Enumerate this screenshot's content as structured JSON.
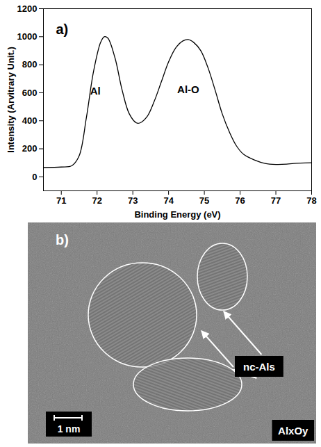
{
  "chart_data": {
    "type": "line",
    "panel_label": "a)",
    "x_label": "Binding Energy (eV)",
    "y_label": "Intensity (Arvitrary Unit.)",
    "x": [
      70.5,
      71.0,
      71.3,
      71.5,
      71.7,
      71.9,
      72.1,
      72.2,
      72.3,
      72.5,
      72.7,
      72.9,
      73.1,
      73.2,
      73.4,
      73.6,
      73.8,
      74.0,
      74.2,
      74.4,
      74.55,
      74.7,
      74.9,
      75.1,
      75.3,
      75.5,
      75.7,
      75.9,
      76.1,
      76.4,
      76.7,
      77.0,
      77.3,
      77.5,
      78.0
    ],
    "values": [
      65,
      70,
      80,
      150,
      420,
      750,
      960,
      1000,
      990,
      850,
      620,
      450,
      385,
      385,
      430,
      540,
      680,
      820,
      920,
      970,
      980,
      960,
      900,
      780,
      620,
      450,
      320,
      220,
      160,
      120,
      95,
      88,
      90,
      95,
      100
    ],
    "color": "#000000",
    "xlim": [
      70.5,
      78
    ],
    "xticks": [
      71,
      72,
      73,
      74,
      75,
      76,
      77,
      78
    ],
    "ylim": [
      -100,
      1200
    ],
    "yticks": [
      0,
      200,
      400,
      600,
      800,
      1000,
      1200
    ],
    "annotations": [
      {
        "text": "Al",
        "x": 71.95,
        "y": 610
      },
      {
        "text": "Al-O",
        "x": 74.55,
        "y": 620
      }
    ]
  },
  "image": {
    "panel_label": "b)",
    "region_label": "nc-Als",
    "scale_bar": "1 nm",
    "matrix_label": "AlxOy"
  }
}
